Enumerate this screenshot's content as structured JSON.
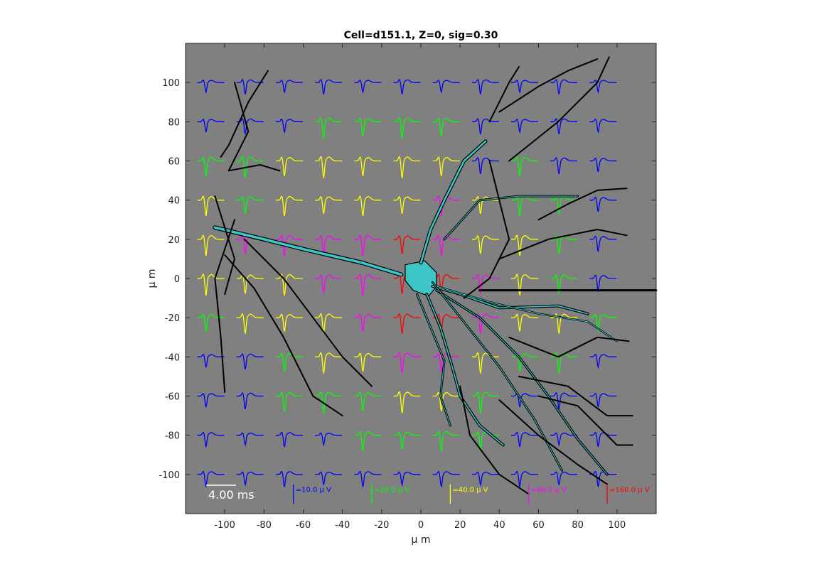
{
  "chart_data": {
    "type": "line",
    "title": "Cell=d151.1, Z=0, sig=0.30",
    "xlabel": "μ m",
    "ylabel": "μ m",
    "xlim": [
      -120,
      120
    ],
    "ylim": [
      -120,
      120
    ],
    "xticks": [
      -100,
      -80,
      -60,
      -40,
      -20,
      0,
      20,
      40,
      60,
      80,
      100
    ],
    "yticks": [
      100,
      80,
      60,
      40,
      20,
      0,
      -20,
      -40,
      -60,
      -80,
      -100
    ],
    "background": "#808080",
    "time_scale_label": "4.00 ms",
    "grid_x": [
      -110,
      -90,
      -70,
      -50,
      -30,
      -10,
      10,
      30,
      50,
      70,
      90
    ],
    "grid_y": [
      100,
      80,
      60,
      40,
      20,
      0,
      -20,
      -40,
      -60,
      -80,
      -100
    ],
    "amplitude_scales": [
      {
        "label": "=10.0 μ V",
        "color": "#0000ff"
      },
      {
        "label": "=20.0 μ V",
        "color": "#00ff00"
      },
      {
        "label": "=40.0 μ V",
        "color": "#ffff00"
      },
      {
        "label": "=80.0 μ V",
        "color": "#ff00ff"
      },
      {
        "label": "=160.0 μ V",
        "color": "#ff0000"
      }
    ],
    "color_grid": [
      [
        0,
        0,
        0,
        0,
        0,
        0,
        0,
        0,
        0,
        0,
        0
      ],
      [
        0,
        0,
        0,
        1,
        1,
        1,
        1,
        0,
        0,
        0,
        0
      ],
      [
        1,
        1,
        2,
        2,
        2,
        2,
        2,
        0,
        1,
        0,
        0
      ],
      [
        2,
        1,
        2,
        2,
        2,
        2,
        3,
        2,
        1,
        1,
        0
      ],
      [
        2,
        3,
        3,
        3,
        3,
        4,
        3,
        2,
        2,
        1,
        0
      ],
      [
        2,
        2,
        2,
        3,
        3,
        4,
        4,
        3,
        2,
        1,
        0
      ],
      [
        1,
        2,
        2,
        2,
        3,
        4,
        4,
        3,
        2,
        2,
        1
      ],
      [
        0,
        0,
        1,
        2,
        2,
        3,
        3,
        2,
        1,
        1,
        0
      ],
      [
        0,
        0,
        1,
        1,
        1,
        2,
        2,
        1,
        0,
        0,
        0
      ],
      [
        0,
        0,
        0,
        0,
        1,
        1,
        1,
        1,
        0,
        0,
        0
      ],
      [
        0,
        0,
        0,
        0,
        0,
        0,
        0,
        0,
        0,
        0,
        0
      ]
    ]
  }
}
